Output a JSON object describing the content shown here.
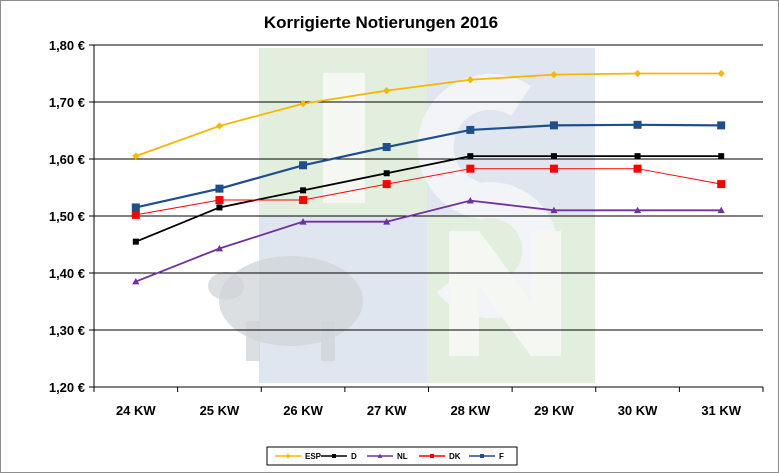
{
  "chart_data": {
    "type": "line",
    "title": "Korrigierte Notierungen 2016",
    "xlabel": "",
    "ylabel": "",
    "categories": [
      "24 KW",
      "25 KW",
      "26 KW",
      "27 KW",
      "28 KW",
      "29 KW",
      "30 KW",
      "31 KW"
    ],
    "ylim": [
      1.2,
      1.8
    ],
    "yticks": [
      1.2,
      1.3,
      1.4,
      1.5,
      1.6,
      1.7,
      1.8
    ],
    "ytick_labels": [
      "1,20 €",
      "1,30 €",
      "1,40 €",
      "1,50 €",
      "1,60 €",
      "1,70 €",
      "1,80 €"
    ],
    "grid": true,
    "legend_position": "bottom",
    "series": [
      {
        "name": "ESP",
        "color": "#f5b800",
        "marker": "diamond",
        "values": [
          1.605,
          1.658,
          1.697,
          1.72,
          1.739,
          1.748,
          1.75,
          1.75
        ]
      },
      {
        "name": "D",
        "color": "#000000",
        "marker": "square",
        "values": [
          1.455,
          1.515,
          1.545,
          1.575,
          1.605,
          1.605,
          1.605,
          1.605
        ]
      },
      {
        "name": "NL",
        "color": "#7030a0",
        "marker": "triangle",
        "values": [
          1.385,
          1.443,
          1.49,
          1.49,
          1.527,
          1.51,
          1.51,
          1.51
        ]
      },
      {
        "name": "DK",
        "color": "#ff0000",
        "marker": "square",
        "values": [
          1.502,
          1.528,
          1.528,
          1.556,
          1.583,
          1.583,
          1.583,
          1.556
        ]
      },
      {
        "name": "F",
        "color": "#1f4e8c",
        "marker": "square",
        "values": [
          1.515,
          1.548,
          1.589,
          1.621,
          1.651,
          1.659,
          1.66,
          1.659
        ]
      }
    ]
  }
}
